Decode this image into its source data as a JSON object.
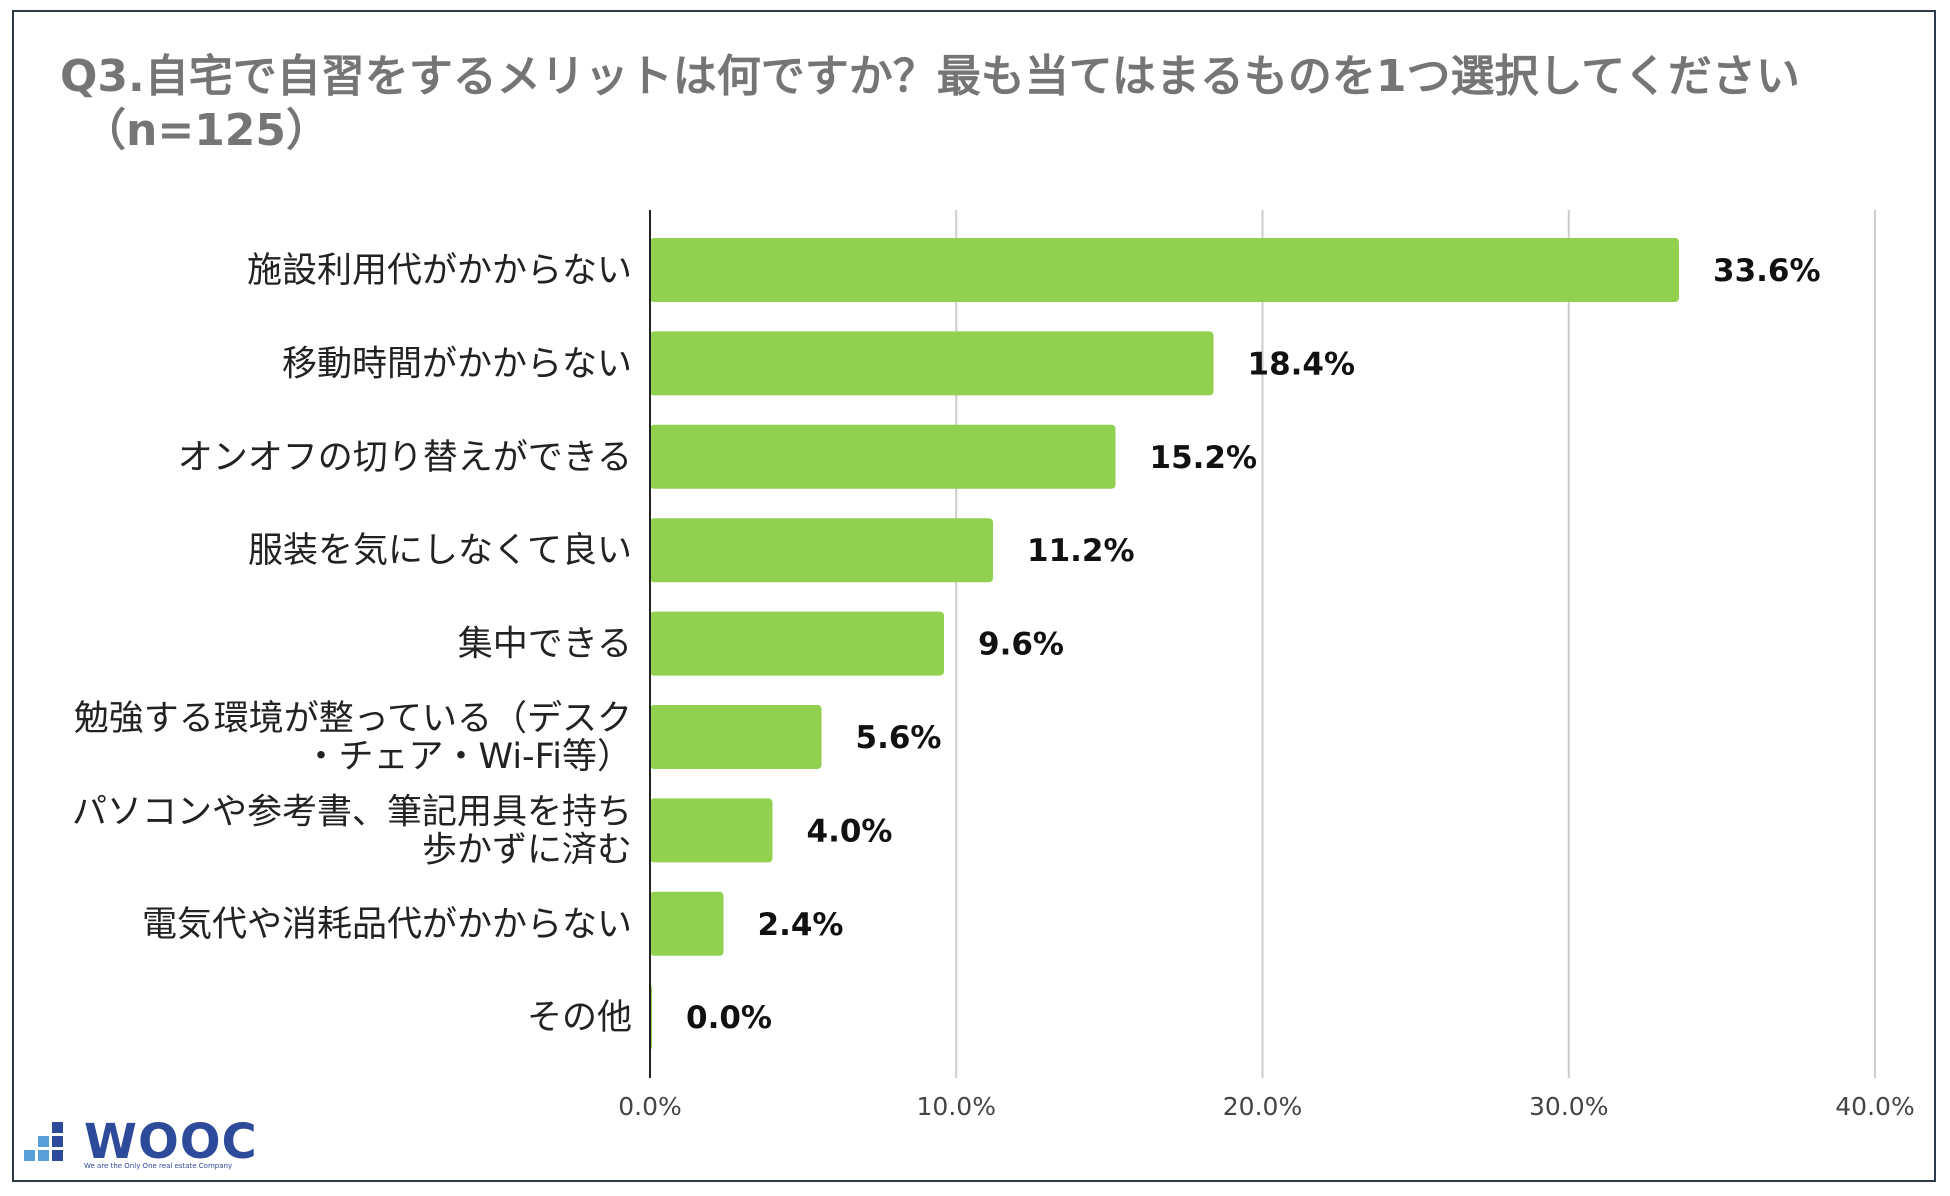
{
  "title_line1": "Q3.自宅で自習をするメリットは何ですか？最も当てはまるものを1つ選択してください",
  "title_line2": "（n=125）",
  "logo": {
    "name": "WOOC",
    "tagline": "We are the Only One real estate Company"
  },
  "colors": {
    "bar": "#92d050",
    "grid": "#cccccc",
    "axis": "#222222"
  },
  "chart_data": {
    "type": "bar",
    "orientation": "horizontal",
    "title": "Q3.自宅で自習をするメリットは何ですか？最も当てはまるものを1つ選択してください（n=125）",
    "categories": [
      [
        "施設利用代がかからない"
      ],
      [
        "移動時間がかからない"
      ],
      [
        "オンオフの切り替えができる"
      ],
      [
        "服装を気にしなくて良い"
      ],
      [
        "集中できる"
      ],
      [
        "勉強する環境が整っている（デスク",
        "・チェア・Wi-Fi等）"
      ],
      [
        "パソコンや参考書、筆記用具を持ち",
        "歩かずに済む"
      ],
      [
        "電気代や消耗品代がかからない"
      ],
      [
        "その他"
      ]
    ],
    "values": [
      33.6,
      18.4,
      15.2,
      11.2,
      9.6,
      5.6,
      4.0,
      2.4,
      0.0
    ],
    "value_labels": [
      "33.6%",
      "18.4%",
      "15.2%",
      "11.2%",
      "9.6%",
      "5.6%",
      "4.0%",
      "2.4%",
      "0.0%"
    ],
    "xlim": [
      0,
      40
    ],
    "xticks": [
      0,
      10,
      20,
      30,
      40
    ],
    "xtick_labels": [
      "0.0%",
      "10.0%",
      "20.0%",
      "30.0%",
      "40.0%"
    ],
    "grid": true,
    "legend": "none"
  }
}
